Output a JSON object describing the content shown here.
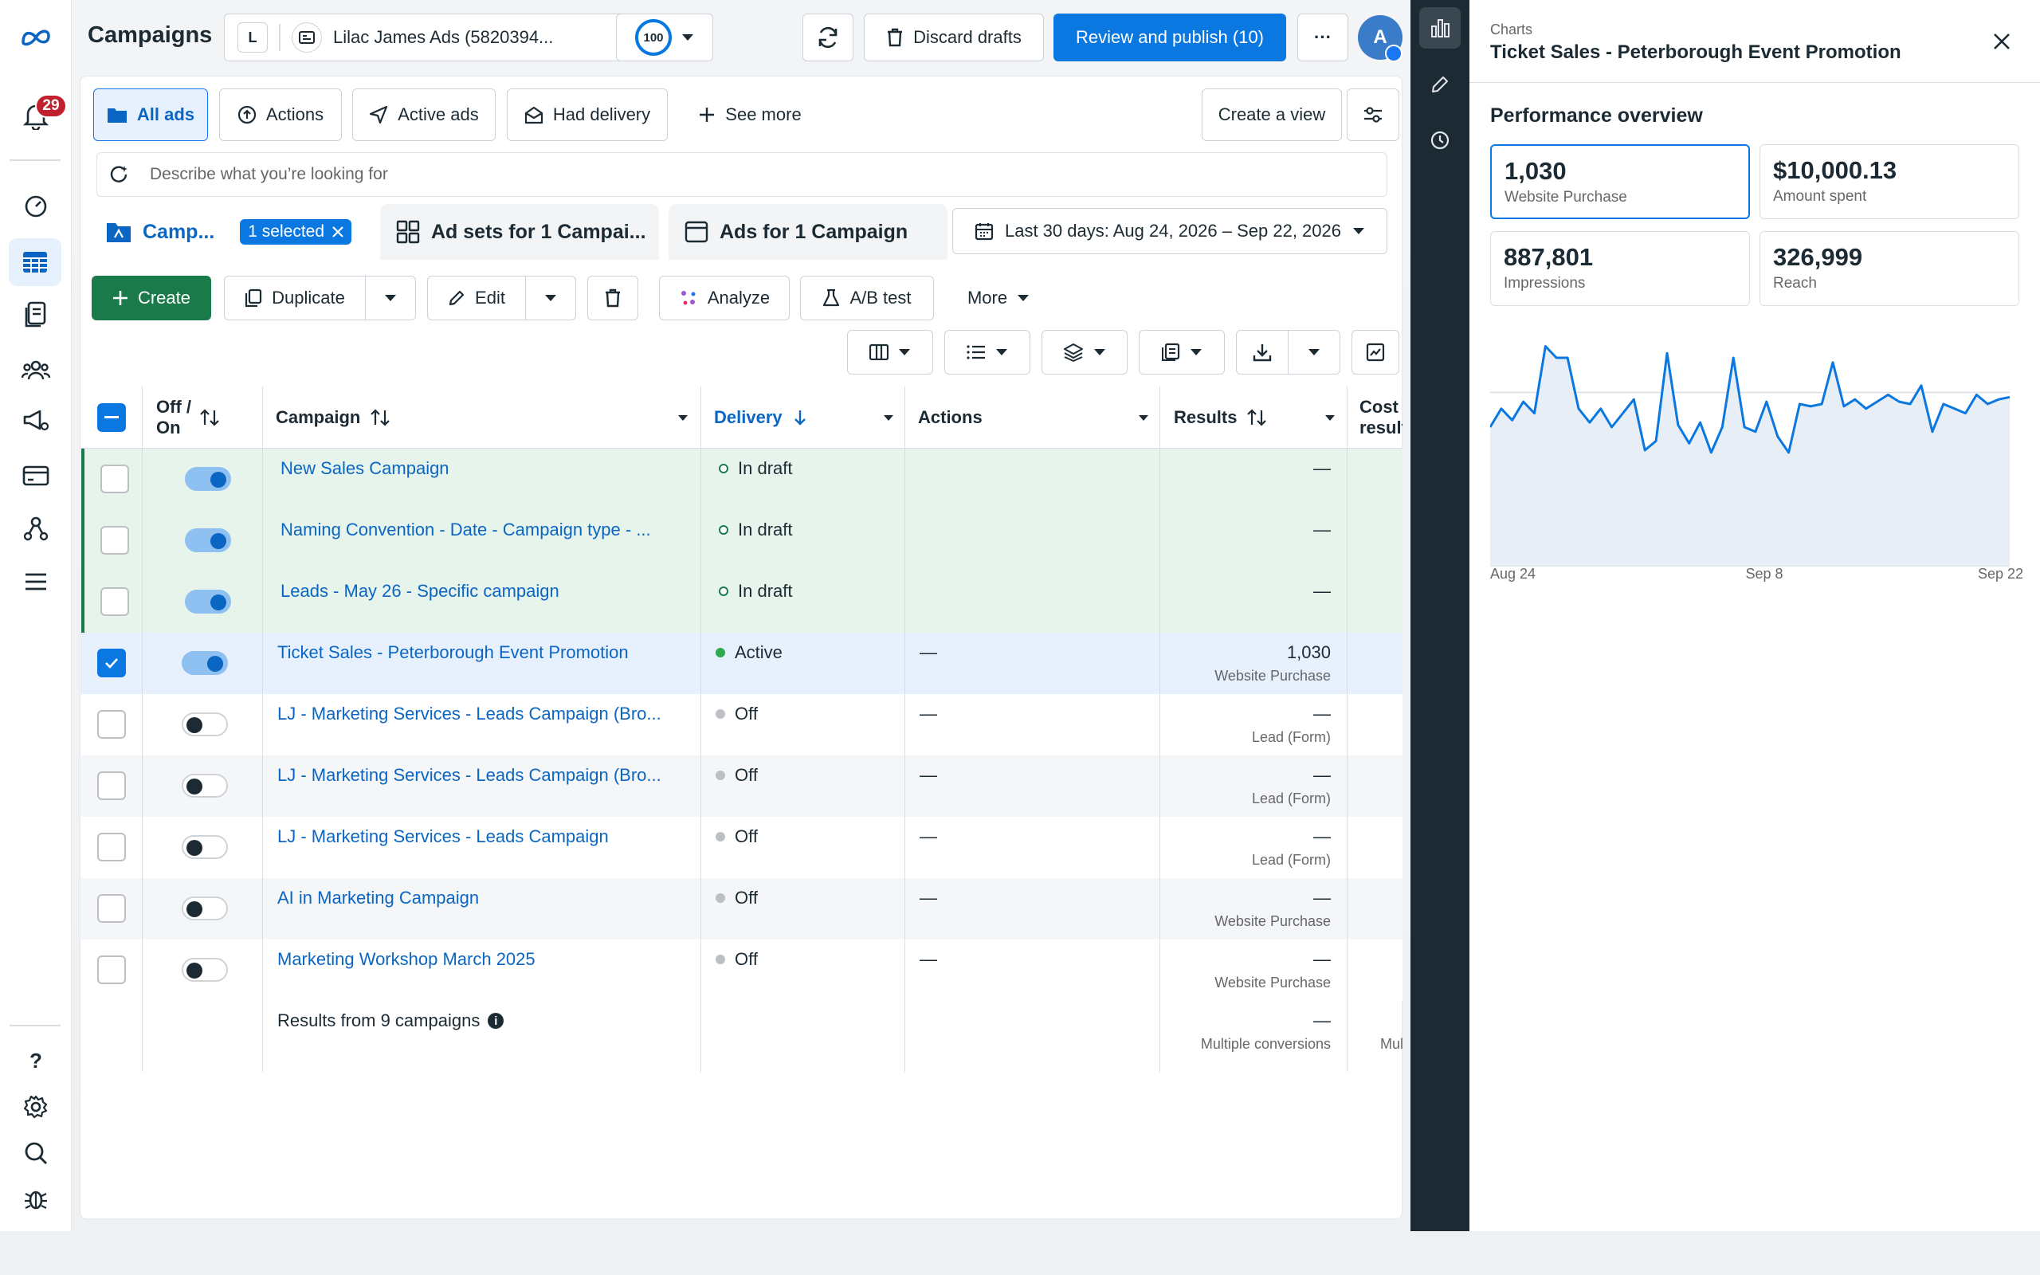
{
  "rail": {
    "notification_count": "29"
  },
  "header": {
    "title": "Campaigns",
    "account_initial": "L",
    "account_name": "Lilac James Ads (5820394...",
    "score": "100",
    "discard_label": "Discard drafts",
    "publish_label": "Review and publish (10)",
    "more_label": "···",
    "avatar_initial": "A"
  },
  "filters": {
    "all_ads": "All ads",
    "actions": "Actions",
    "active_ads": "Active ads",
    "had_delivery": "Had delivery",
    "see_more": "See more",
    "create_view": "Create a view"
  },
  "search": {
    "placeholder": "Describe what you’re looking for"
  },
  "tabs": {
    "campaigns": "Camp...",
    "selected": "1 selected",
    "adsets": "Ad sets for 1 Campai...",
    "ads": "Ads for 1 Campaign",
    "date_range": "Last 30 days: Aug 24, 2026 – Sep 22, 2026"
  },
  "toolbar": {
    "create": "Create",
    "duplicate": "Duplicate",
    "edit": "Edit",
    "analyze": "Analyze",
    "ab_test": "A/B test",
    "more": "More"
  },
  "columns": {
    "off_on": "Off /\nOn",
    "campaign": "Campaign",
    "delivery": "Delivery",
    "actions": "Actions",
    "results": "Results",
    "cost": "Cost\nresult"
  },
  "rows": [
    {
      "name": "New Sales Campaign",
      "delivery": "In draft",
      "actions": "",
      "result": "—",
      "result_type": ""
    },
    {
      "name": "Naming Convention - Date - Campaign type - ...",
      "delivery": "In draft",
      "actions": "",
      "result": "—",
      "result_type": ""
    },
    {
      "name": "Leads - May 26 - Specific campaign",
      "delivery": "In draft",
      "actions": "",
      "result": "—",
      "result_type": ""
    },
    {
      "name": "Ticket Sales - Peterborough Event Promotion",
      "delivery": "Active",
      "actions": "—",
      "result": "1,030",
      "result_type": "Website Purchase"
    },
    {
      "name": "LJ - Marketing Services - Leads Campaign (Bro...",
      "delivery": "Off",
      "actions": "—",
      "result": "—",
      "result_type": "Lead (Form)"
    },
    {
      "name": "LJ - Marketing Services - Leads Campaign (Bro...",
      "delivery": "Off",
      "actions": "—",
      "result": "—",
      "result_type": "Lead (Form)"
    },
    {
      "name": "LJ - Marketing Services - Leads Campaign",
      "delivery": "Off",
      "actions": "—",
      "result": "—",
      "result_type": "Lead (Form)"
    },
    {
      "name": "AI in Marketing Campaign",
      "delivery": "Off",
      "actions": "—",
      "result": "—",
      "result_type": "Website Purchase"
    },
    {
      "name": "Marketing Workshop March 2025",
      "delivery": "Off",
      "actions": "—",
      "result": "—",
      "result_type": "Website Purchase"
    }
  ],
  "summary": {
    "label": "Results from 9 campaigns",
    "result": "—",
    "result_type": "Multiple conversions",
    "cost_type": "Mul"
  },
  "panel": {
    "eyebrow": "Charts",
    "title": "Ticket Sales - Peterborough Event Promotion",
    "section": "Performance overview",
    "metrics": [
      {
        "value": "1,030",
        "label": "Website Purchase"
      },
      {
        "value": "$10,000.13",
        "label": "Amount spent"
      },
      {
        "value": "887,801",
        "label": "Impressions"
      },
      {
        "value": "326,999",
        "label": "Reach"
      }
    ]
  },
  "chart_data": {
    "type": "area",
    "series": [
      {
        "values": [
          60,
          68,
          63,
          71,
          66,
          95,
          90,
          90,
          68,
          62,
          68,
          60,
          66,
          72,
          50,
          54,
          92,
          61,
          53,
          62,
          49,
          60,
          90,
          60,
          58,
          71,
          56,
          49,
          70,
          69,
          70,
          88,
          69,
          72,
          68,
          71,
          74,
          71,
          70,
          78,
          58,
          70,
          68,
          66,
          74,
          70,
          72,
          73
        ]
      }
    ],
    "x_tick_labels": [
      "Aug 24",
      "Sep 8",
      "Sep 22"
    ],
    "grid": true,
    "colors": {
      "line": "#0a78e0",
      "fill": "#e8eef5"
    }
  }
}
